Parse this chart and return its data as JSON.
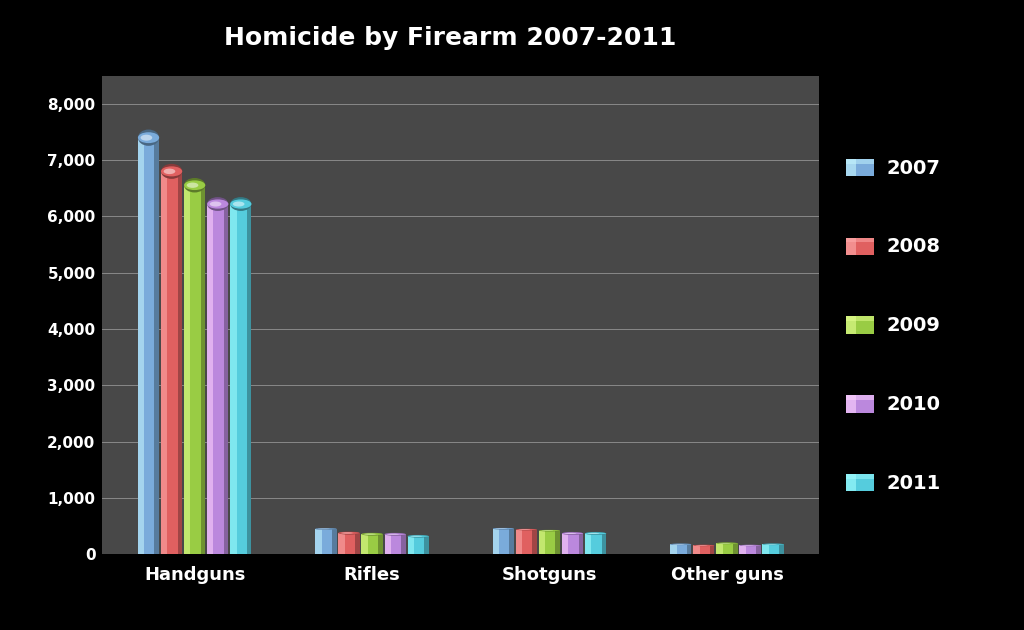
{
  "title": "Homicide by Firearm 2007-2011",
  "categories": [
    "Handguns",
    "Rifles",
    "Shotguns",
    "Other guns"
  ],
  "years": [
    "2007",
    "2008",
    "2009",
    "2010",
    "2011"
  ],
  "values": {
    "Handguns": [
      7398,
      6800,
      6554,
      6220,
      6220
    ],
    "Rifles": [
      453,
      380,
      360,
      358,
      323
    ],
    "Shotguns": [
      457,
      442,
      423,
      373,
      373
    ],
    "Other guns": [
      180,
      160,
      198,
      160,
      180
    ]
  },
  "colors": [
    "#7AABDB",
    "#E06060",
    "#99CC44",
    "#BB88DD",
    "#55CCDD"
  ],
  "background_color": "#000000",
  "plot_bg_color": "#484848",
  "title_color": "#ffffff",
  "tick_color": "#ffffff",
  "label_color": "#ffffff",
  "grid_color": "#888888",
  "ylim": [
    0,
    8500
  ],
  "yticks": [
    0,
    1000,
    2000,
    3000,
    4000,
    5000,
    6000,
    7000,
    8000
  ]
}
